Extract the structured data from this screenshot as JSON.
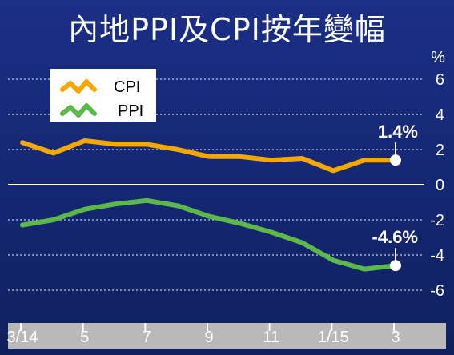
{
  "title": "內地PPI及CPI按年變幅",
  "chart_data": {
    "type": "line",
    "title": "內地PPI及CPI按年變幅",
    "unit": "%",
    "ylim": [
      -6,
      6
    ],
    "yticks": [
      6,
      4,
      2,
      0,
      -2,
      -4,
      -6
    ],
    "x": [
      "3/14",
      "4/14",
      "5/14",
      "6/14",
      "7/14",
      "8/14",
      "9/14",
      "10/14",
      "11/14",
      "12/14",
      "1/15",
      "2/15",
      "3/15"
    ],
    "xtick_labels": [
      {
        "index": 0,
        "label": "3/14"
      },
      {
        "index": 2,
        "label": "5"
      },
      {
        "index": 4,
        "label": "7"
      },
      {
        "index": 6,
        "label": "9"
      },
      {
        "index": 8,
        "label": "11"
      },
      {
        "index": 10,
        "label": "1/15"
      },
      {
        "index": 12,
        "label": "3"
      }
    ],
    "series": [
      {
        "name": "CPI",
        "color": "#f5a800",
        "values": [
          2.4,
          1.8,
          2.5,
          2.3,
          2.3,
          2.0,
          1.6,
          1.6,
          1.4,
          1.5,
          0.8,
          1.4,
          1.4
        ]
      },
      {
        "name": "PPI",
        "color": "#5cb84a",
        "values": [
          -2.3,
          -2.0,
          -1.4,
          -1.1,
          -0.9,
          -1.2,
          -1.8,
          -2.2,
          -2.7,
          -3.3,
          -4.3,
          -4.8,
          -4.6
        ]
      }
    ],
    "annotations": [
      {
        "series": "CPI",
        "index": 12,
        "text": "1.4%"
      },
      {
        "series": "PPI",
        "index": 12,
        "text": "-4.6%"
      }
    ],
    "legend": {
      "position": "top-left",
      "entries": [
        "CPI",
        "PPI"
      ]
    },
    "grid": true
  }
}
